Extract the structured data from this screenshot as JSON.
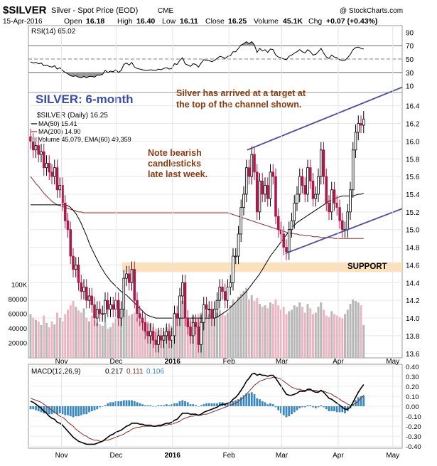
{
  "header": {
    "symbol": "$SILVER",
    "description": "Silver - Spot Price (EOD)",
    "exchange": "CME",
    "copyright": "@ StockCharts.com",
    "date": "15-Apr-2016",
    "open_label": "Open",
    "open": "16.18",
    "high_label": "High",
    "high": "16.40",
    "low_label": "Low",
    "low": "16.11",
    "close_label": "Close",
    "close": "16.25",
    "volume_label": "Volume",
    "volume": "45.1K",
    "chg_label": "Chg",
    "chg": "+0.07 (+0.43%)"
  },
  "rsi_panel": {
    "legend": "RSI(14) 65.02",
    "ylim": [
      0,
      100
    ],
    "ticks": [
      "90",
      "70",
      "50",
      "30",
      "10"
    ],
    "levels": [
      30,
      50,
      70
    ]
  },
  "price_panel": {
    "legend": {
      "title": "$SILVER (Daily) 16.25",
      "ma50": "MA(50) 15.41",
      "ma200": "MA(200) 14.90",
      "volume": "Volume 45,079, EMA(60) 49,359"
    },
    "ylim": [
      13.55,
      16.55
    ],
    "ticks": [
      "16.4",
      "16.2",
      "16.0",
      "15.8",
      "15.6",
      "15.4",
      "15.2",
      "15.0",
      "14.8",
      "14.6",
      "14.4",
      "14.2",
      "14.0",
      "13.8",
      "13.6"
    ],
    "volume_ticks": [
      "100K",
      "80000",
      "60000",
      "40000",
      "20000"
    ],
    "volume_ylim": [
      0,
      120000
    ],
    "support_label": "SUPPORT",
    "support_band": [
      14.52,
      14.63
    ],
    "annotations": {
      "title": "SILVER: 6-month",
      "target_note": [
        "Silver has arrived at a target at",
        "the top of the channel shown."
      ],
      "bearish_note": [
        "Note bearish",
        "candlesticks",
        "late last week."
      ]
    }
  },
  "macd_panel": {
    "legend": {
      "name": "MACD(12,26,9)",
      "macd": "0.217",
      "signal": "0.111",
      "hist": "0.106"
    },
    "ylim": [
      -0.42,
      0.42
    ],
    "ticks": [
      "0.40",
      "0.30",
      "0.20",
      "0.10",
      "0.00",
      "-0.10",
      "-0.20",
      "-0.30",
      "-0.40"
    ]
  },
  "x_axis": {
    "labels": [
      "Nov",
      "Dec",
      "2016",
      "Feb",
      "Mar",
      "Apr",
      "May"
    ]
  },
  "colors": {
    "up_candle": "#000000",
    "down_candle": "#b0184a",
    "ma50": "#000000",
    "ma200": "#8b2a2a",
    "volume_up": "#b8b8b8",
    "volume_down": "#eab6c4",
    "channel": "#4e4ea2",
    "support_band": "#fbdcb2",
    "annotation": "#8b3a0f",
    "title": "#3c4da6",
    "macd_hist": "#3a88c0"
  },
  "chart_data": {
    "type": "candlestick",
    "x": [
      "2015-10-15",
      "2015-10-16",
      "2015-10-19",
      "2015-10-20",
      "2015-10-21",
      "2015-10-22",
      "2015-10-23",
      "2015-10-26",
      "2015-10-27",
      "2015-10-28",
      "2015-10-29",
      "2015-10-30",
      "2015-11-02",
      "2015-11-03",
      "2015-11-04",
      "2015-11-05",
      "2015-11-06",
      "2015-11-09",
      "2015-11-10",
      "2015-11-11",
      "2015-11-12",
      "2015-11-13",
      "2015-11-16",
      "2015-11-17",
      "2015-11-18",
      "2015-11-19",
      "2015-11-20",
      "2015-11-23",
      "2015-11-24",
      "2015-11-25",
      "2015-11-27",
      "2015-11-30",
      "2015-12-01",
      "2015-12-02",
      "2015-12-03",
      "2015-12-04",
      "2015-12-07",
      "2015-12-08",
      "2015-12-09",
      "2015-12-10",
      "2015-12-11",
      "2015-12-14",
      "2015-12-15",
      "2015-12-16",
      "2015-12-17",
      "2015-12-18",
      "2015-12-21",
      "2015-12-22",
      "2015-12-23",
      "2015-12-24",
      "2015-12-28",
      "2015-12-29",
      "2015-12-30",
      "2015-12-31",
      "2016-01-04",
      "2016-01-05",
      "2016-01-06",
      "2016-01-07",
      "2016-01-08",
      "2016-01-11",
      "2016-01-12",
      "2016-01-13",
      "2016-01-14",
      "2016-01-15",
      "2016-01-19",
      "2016-01-20",
      "2016-01-21",
      "2016-01-22",
      "2016-01-25",
      "2016-01-26",
      "2016-01-27",
      "2016-01-28",
      "2016-01-29",
      "2016-02-01",
      "2016-02-02",
      "2016-02-03",
      "2016-02-04",
      "2016-02-05",
      "2016-02-08",
      "2016-02-09",
      "2016-02-10",
      "2016-02-11",
      "2016-02-12",
      "2016-02-16",
      "2016-02-17",
      "2016-02-18",
      "2016-02-19",
      "2016-02-22",
      "2016-02-23",
      "2016-02-24",
      "2016-02-25",
      "2016-02-26",
      "2016-02-29",
      "2016-03-01",
      "2016-03-02",
      "2016-03-03",
      "2016-03-04",
      "2016-03-07",
      "2016-03-08",
      "2016-03-09",
      "2016-03-10",
      "2016-03-11",
      "2016-03-14",
      "2016-03-15",
      "2016-03-16",
      "2016-03-17",
      "2016-03-18",
      "2016-03-21",
      "2016-03-22",
      "2016-03-23",
      "2016-03-24",
      "2016-03-28",
      "2016-03-29",
      "2016-03-30",
      "2016-03-31",
      "2016-04-01",
      "2016-04-04",
      "2016-04-05",
      "2016-04-06",
      "2016-04-07",
      "2016-04-08",
      "2016-04-11",
      "2016-04-12",
      "2016-04-13",
      "2016-04-14",
      "2016-04-15"
    ],
    "close": [
      16.0,
      15.9,
      15.95,
      15.85,
      15.88,
      15.7,
      15.75,
      15.65,
      15.6,
      15.7,
      15.45,
      15.5,
      15.3,
      15.1,
      15.0,
      14.7,
      14.55,
      14.6,
      14.4,
      14.3,
      14.35,
      14.2,
      14.25,
      14.15,
      14.0,
      14.1,
      14.05,
      14.05,
      14.2,
      14.1,
      14.15,
      14.1,
      14.2,
      14.0,
      14.1,
      14.45,
      14.5,
      14.4,
      14.55,
      14.2,
      14.05,
      14.0,
      13.95,
      13.85,
      13.8,
      13.85,
      13.75,
      13.7,
      13.8,
      13.75,
      13.8,
      13.85,
      13.75,
      13.8,
      14.05,
      14.0,
      14.25,
      14.4,
      14.0,
      13.9,
      13.8,
      13.95,
      13.9,
      13.7,
      13.95,
      14.15,
      14.1,
      14.1,
      14.0,
      14.1,
      14.2,
      14.35,
      14.3,
      14.2,
      14.35,
      14.4,
      14.7,
      14.7,
      14.95,
      15.25,
      15.4,
      15.7,
      15.6,
      15.85,
      15.65,
      15.2,
      15.55,
      15.4,
      15.5,
      15.35,
      15.65,
      15.6,
      15.15,
      15.0,
      14.95,
      14.8,
      14.75,
      15.0,
      15.1,
      15.3,
      15.4,
      15.6,
      15.5,
      15.4,
      15.7,
      15.55,
      15.35,
      15.4,
      15.6,
      15.9,
      15.6,
      15.3,
      15.2,
      15.45,
      15.3,
      15.25,
      15.1,
      15.0,
      15.0,
      15.2,
      15.45,
      15.9,
      16.1,
      16.2,
      16.18,
      16.25
    ],
    "ma50": [
      15.28,
      15.28,
      15.28,
      15.28,
      15.28,
      15.28,
      15.28,
      15.28,
      15.28,
      15.28,
      15.28,
      15.28,
      15.28,
      15.28,
      15.27,
      15.25,
      15.22,
      15.18,
      15.13,
      15.07,
      15.0,
      14.93,
      14.85,
      14.78,
      14.72,
      14.66,
      14.6,
      14.55,
      14.5,
      14.46,
      14.42,
      14.39,
      14.36,
      14.33,
      14.3,
      14.28,
      14.26,
      14.23,
      14.2,
      14.17,
      14.14,
      14.11,
      14.08,
      14.05,
      14.03,
      14.02,
      14.01,
      14.0,
      14.0,
      14.0,
      14.0,
      14.0,
      14.0,
      14.0,
      14.0,
      14.0,
      14.0,
      14.0,
      14.0,
      14.0,
      14.0,
      14.0,
      14.0,
      14.0,
      14.0,
      14.0,
      14.0,
      14.0,
      14.0,
      14.0,
      14.01,
      14.03,
      14.05,
      14.07,
      14.09,
      14.12,
      14.15,
      14.18,
      14.21,
      14.24,
      14.27,
      14.3,
      14.34,
      14.38,
      14.42,
      14.46,
      14.5,
      14.55,
      14.6,
      14.65,
      14.7,
      14.74,
      14.78,
      14.82,
      14.86,
      14.9,
      14.94,
      14.98,
      15.02,
      15.05,
      15.08,
      15.1,
      15.12,
      15.14,
      15.16,
      15.18,
      15.2,
      15.22,
      15.24,
      15.26,
      15.28,
      15.3,
      15.32,
      15.34,
      15.35,
      15.36,
      15.37,
      15.38,
      15.38,
      15.38,
      15.38,
      15.38,
      15.39,
      15.4,
      15.4,
      15.41
    ],
    "ma200": [
      15.6,
      15.56,
      15.52,
      15.49,
      15.45,
      15.41,
      15.38,
      15.35,
      15.32,
      15.3,
      15.28,
      15.27,
      15.26,
      15.25,
      15.24,
      15.23,
      15.22,
      15.21,
      15.2,
      15.2,
      15.19,
      15.19,
      15.19,
      15.19,
      15.19,
      15.19,
      15.19,
      15.19,
      15.19,
      15.19,
      15.19,
      15.19,
      15.19,
      15.19,
      15.19,
      15.19,
      15.19,
      15.19,
      15.19,
      15.19,
      15.19,
      15.19,
      15.19,
      15.19,
      15.19,
      15.19,
      15.19,
      15.19,
      15.19,
      15.19,
      15.19,
      15.19,
      15.19,
      15.19,
      15.19,
      15.19,
      15.19,
      15.19,
      15.19,
      15.19,
      15.19,
      15.19,
      15.19,
      15.19,
      15.19,
      15.19,
      15.19,
      15.19,
      15.19,
      15.19,
      15.19,
      15.19,
      15.19,
      15.19,
      15.19,
      15.18,
      15.17,
      15.16,
      15.15,
      15.14,
      15.13,
      15.12,
      15.11,
      15.1,
      15.09,
      15.08,
      15.07,
      15.06,
      15.05,
      15.04,
      15.03,
      15.02,
      15.01,
      15.0,
      14.99,
      14.98,
      14.97,
      14.96,
      14.96,
      14.95,
      14.95,
      14.94,
      14.94,
      14.93,
      14.93,
      14.93,
      14.92,
      14.92,
      14.92,
      14.91,
      14.91,
      14.91,
      14.91,
      14.91,
      14.9,
      14.9,
      14.9,
      14.9,
      14.9,
      14.9,
      14.9,
      14.9,
      14.9,
      14.9,
      14.9,
      14.9
    ],
    "volume": [
      60000,
      55000,
      52000,
      50000,
      45000,
      58000,
      48000,
      42000,
      50000,
      46000,
      62000,
      55000,
      50000,
      60000,
      66000,
      72000,
      78000,
      70000,
      65000,
      62000,
      68000,
      55000,
      50000,
      58000,
      52000,
      48000,
      46000,
      44000,
      50000,
      40000,
      42000,
      48000,
      54000,
      60000,
      58000,
      72000,
      66000,
      58000,
      60000,
      62000,
      55000,
      50000,
      52000,
      46000,
      50000,
      48000,
      42000,
      40000,
      38000,
      30000,
      36000,
      42000,
      40000,
      44000,
      62000,
      58000,
      70000,
      78000,
      66000,
      55000,
      50000,
      58000,
      54000,
      60000,
      62000,
      70000,
      64000,
      60000,
      55000,
      58000,
      62000,
      66000,
      60000,
      58000,
      62000,
      72000,
      80000,
      76000,
      84000,
      88000,
      92000,
      96000,
      80000,
      86000,
      78000,
      82000,
      74000,
      70000,
      72000,
      68000,
      76000,
      74000,
      80000,
      72000,
      66000,
      70000,
      60000,
      64000,
      66000,
      72000,
      70000,
      76000,
      70000,
      62000,
      74000,
      68000,
      60000,
      62000,
      70000,
      76000,
      66000,
      58000,
      56000,
      64000,
      60000,
      58000,
      56000,
      54000,
      60000,
      66000,
      74000,
      80000,
      78000,
      76000,
      72000,
      45079
    ],
    "rsi": [
      46,
      44,
      45,
      43,
      44,
      40,
      41,
      39,
      38,
      40,
      35,
      37,
      33,
      30,
      28,
      25,
      24,
      25,
      23,
      22,
      24,
      22,
      24,
      24,
      23,
      26,
      26,
      27,
      33,
      30,
      32,
      31,
      34,
      30,
      33,
      42,
      44,
      41,
      45,
      38,
      36,
      35,
      34,
      33,
      33,
      34,
      33,
      33,
      35,
      34,
      36,
      37,
      35,
      36,
      43,
      42,
      48,
      52,
      43,
      41,
      39,
      43,
      42,
      38,
      44,
      49,
      48,
      48,
      46,
      48,
      51,
      54,
      53,
      51,
      54,
      55,
      61,
      61,
      66,
      71,
      73,
      76,
      73,
      76,
      71,
      60,
      66,
      62,
      64,
      60,
      65,
      64,
      56,
      53,
      52,
      50,
      49,
      54,
      56,
      59,
      61,
      64,
      61,
      59,
      64,
      61,
      56,
      57,
      61,
      66,
      59,
      53,
      51,
      56,
      53,
      52,
      49,
      48,
      48,
      52,
      57,
      64,
      67,
      68,
      66,
      65
    ],
    "macd": [
      0.05,
      0.04,
      0.02,
      0.0,
      -0.02,
      -0.05,
      -0.07,
      -0.1,
      -0.12,
      -0.13,
      -0.16,
      -0.17,
      -0.19,
      -0.22,
      -0.25,
      -0.28,
      -0.31,
      -0.33,
      -0.35,
      -0.36,
      -0.37,
      -0.38,
      -0.38,
      -0.38,
      -0.38,
      -0.37,
      -0.36,
      -0.35,
      -0.33,
      -0.31,
      -0.29,
      -0.28,
      -0.26,
      -0.25,
      -0.24,
      -0.22,
      -0.2,
      -0.19,
      -0.17,
      -0.17,
      -0.17,
      -0.18,
      -0.18,
      -0.19,
      -0.19,
      -0.19,
      -0.2,
      -0.2,
      -0.19,
      -0.19,
      -0.18,
      -0.17,
      -0.17,
      -0.16,
      -0.14,
      -0.13,
      -0.1,
      -0.07,
      -0.07,
      -0.07,
      -0.08,
      -0.08,
      -0.08,
      -0.09,
      -0.08,
      -0.06,
      -0.05,
      -0.04,
      -0.03,
      -0.02,
      -0.01,
      0.01,
      0.02,
      0.02,
      0.03,
      0.04,
      0.07,
      0.09,
      0.12,
      0.16,
      0.2,
      0.25,
      0.28,
      0.32,
      0.33,
      0.31,
      0.32,
      0.31,
      0.31,
      0.3,
      0.31,
      0.31,
      0.28,
      0.24,
      0.2,
      0.16,
      0.12,
      0.11,
      0.11,
      0.12,
      0.13,
      0.15,
      0.15,
      0.15,
      0.17,
      0.17,
      0.15,
      0.14,
      0.14,
      0.16,
      0.14,
      0.11,
      0.08,
      0.07,
      0.05,
      0.03,
      0.01,
      -0.01,
      -0.03,
      -0.03,
      -0.01,
      0.04,
      0.09,
      0.14,
      0.18,
      0.217
    ],
    "signal": [
      0.08,
      0.07,
      0.06,
      0.05,
      0.04,
      0.02,
      0.0,
      -0.02,
      -0.04,
      -0.06,
      -0.08,
      -0.1,
      -0.11,
      -0.13,
      -0.16,
      -0.18,
      -0.2,
      -0.23,
      -0.25,
      -0.27,
      -0.29,
      -0.3,
      -0.32,
      -0.33,
      -0.34,
      -0.34,
      -0.35,
      -0.35,
      -0.34,
      -0.34,
      -0.33,
      -0.32,
      -0.31,
      -0.3,
      -0.29,
      -0.28,
      -0.26,
      -0.25,
      -0.23,
      -0.22,
      -0.21,
      -0.21,
      -0.2,
      -0.2,
      -0.2,
      -0.2,
      -0.2,
      -0.2,
      -0.2,
      -0.2,
      -0.19,
      -0.19,
      -0.18,
      -0.18,
      -0.17,
      -0.16,
      -0.15,
      -0.13,
      -0.12,
      -0.11,
      -0.1,
      -0.1,
      -0.09,
      -0.09,
      -0.09,
      -0.08,
      -0.08,
      -0.07,
      -0.06,
      -0.05,
      -0.04,
      -0.03,
      -0.02,
      -0.01,
      0.0,
      0.01,
      0.02,
      0.03,
      0.05,
      0.07,
      0.09,
      0.12,
      0.15,
      0.18,
      0.21,
      0.23,
      0.25,
      0.26,
      0.27,
      0.28,
      0.28,
      0.29,
      0.29,
      0.28,
      0.27,
      0.25,
      0.23,
      0.21,
      0.19,
      0.18,
      0.17,
      0.17,
      0.16,
      0.16,
      0.16,
      0.16,
      0.16,
      0.16,
      0.15,
      0.15,
      0.15,
      0.14,
      0.13,
      0.12,
      0.1,
      0.09,
      0.07,
      0.05,
      0.04,
      0.02,
      0.01,
      0.02,
      0.03,
      0.05,
      0.08,
      0.111
    ]
  }
}
